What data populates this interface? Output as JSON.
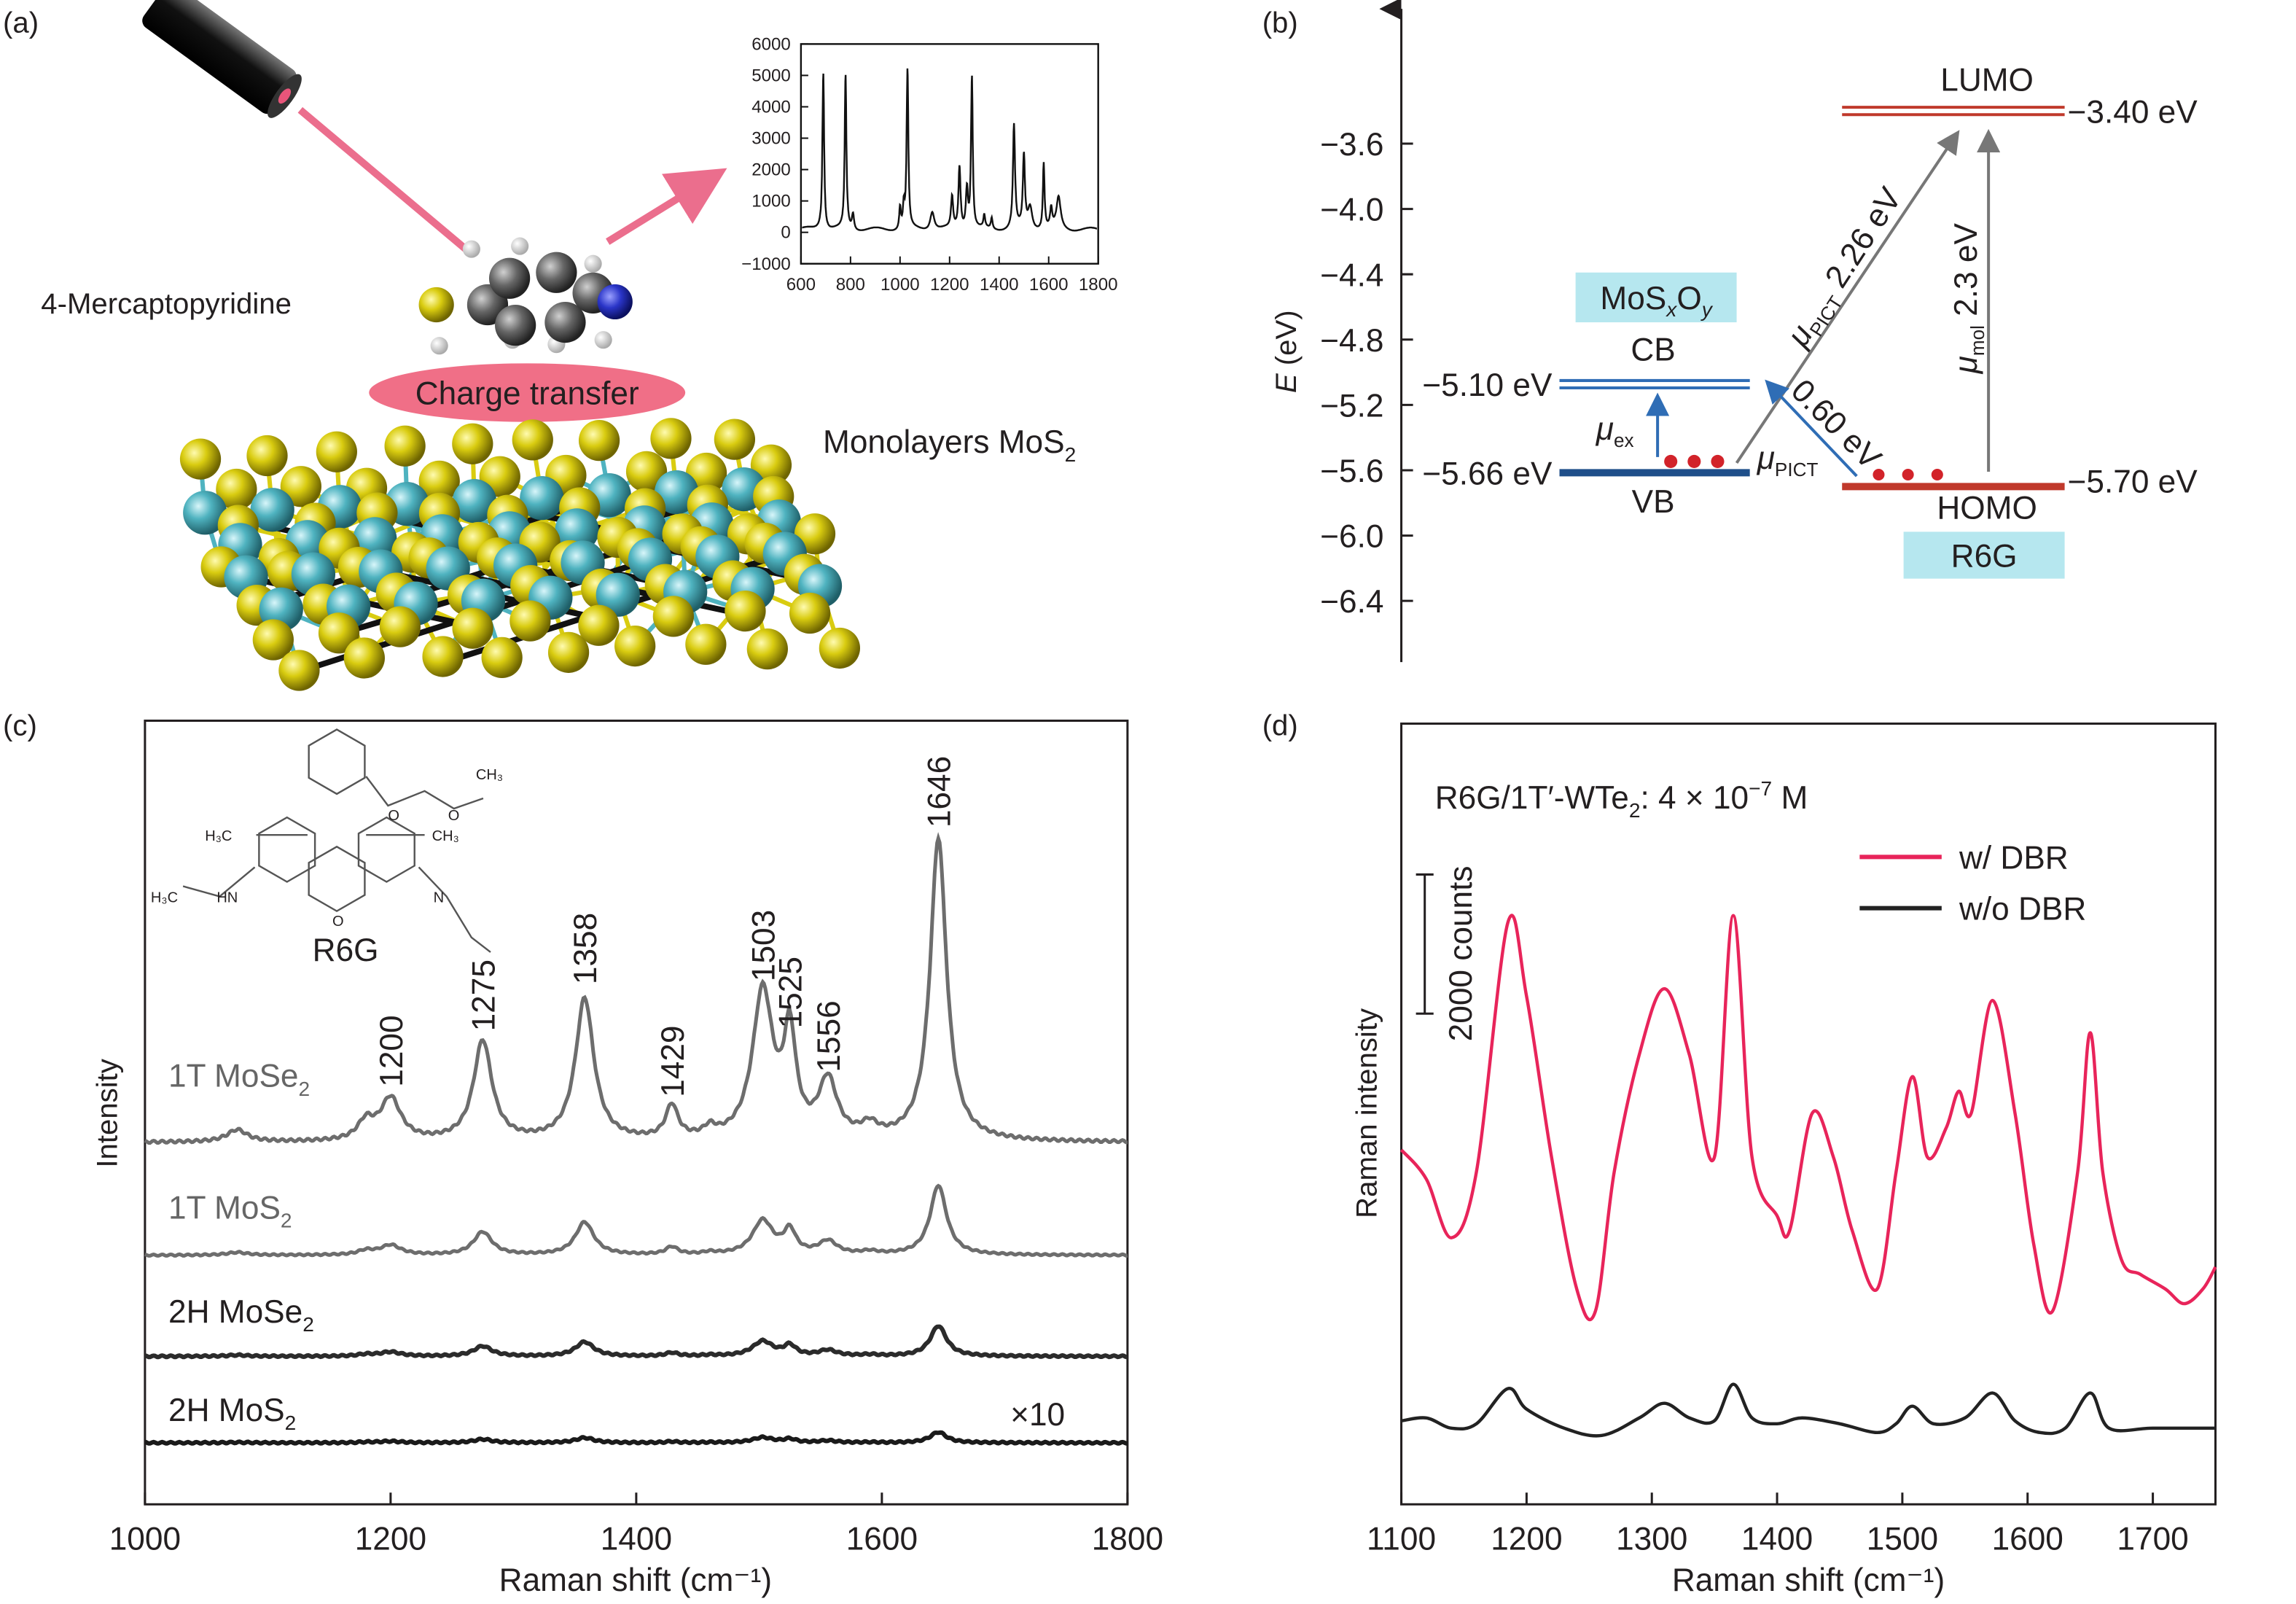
{
  "panels": {
    "a": {
      "label": "(a)",
      "molecule_label": "4-Mercaptopyridine",
      "charge_transfer_label": "Charge transfer",
      "substrate_label": "Monolayers MoS",
      "substrate_sub": "2",
      "colors": {
        "beam": "#e8557a",
        "ellipse": "#ee5f7a",
        "sulfur": "#d9cc10",
        "metal": "#4fb3c0",
        "nitrogen": "#2a35c8",
        "carbon": "#555555"
      }
    },
    "b": {
      "label": "(b)",
      "ylabel": "E (eV)",
      "yticks": [
        "−3.6",
        "−4.0",
        "−4.4",
        "−4.8",
        "−5.2",
        "−5.6",
        "−6.0",
        "−6.4"
      ],
      "ytick_values": [
        -3.6,
        -4.0,
        -4.4,
        -4.8,
        -5.2,
        -5.6,
        -6.0,
        -6.4
      ],
      "levels": {
        "cb": {
          "name": "CB",
          "value": -5.1,
          "text": "−5.10 eV"
        },
        "vb": {
          "name": "VB",
          "value": -5.66,
          "text": "−5.66 eV"
        },
        "lumo": {
          "name": "LUMO",
          "value": -3.4,
          "text": "−3.40 eV"
        },
        "homo": {
          "name": "HOMO",
          "value": -5.7,
          "text": "−5.70 eV"
        }
      },
      "substrate_box": {
        "main": "MoS",
        "sub_x": "x",
        "mid": "O",
        "sub_y": "y"
      },
      "molecule_box": "R6G",
      "transitions": {
        "mu_ex": {
          "mu": "μ",
          "sub": "ex"
        },
        "mu_pict_vb": {
          "mu": "μ",
          "sub": "PICT"
        },
        "mu_pict_226": {
          "mu": "μ",
          "sub": "PICT",
          "energy": " 2.26 eV"
        },
        "homo_cb": {
          "energy": "0.60 eV"
        },
        "mu_mol": {
          "mu": "μ",
          "sub": "mol",
          "energy": " 2.3 eV"
        }
      },
      "colors": {
        "substrate": "#2f6db5",
        "molecule": "#c0392b",
        "box": "#b6e7ef",
        "arrow": "#2f6db5",
        "arrow_gray": "#777777"
      }
    },
    "c": {
      "label": "(c)",
      "ylabel": "Intensity",
      "molecule_label": "R6G",
      "structure_atoms": [
        "H₃C",
        "CH₃",
        "HN",
        "N",
        "H₃C",
        "O",
        "O",
        "O",
        "CH₃"
      ],
      "multiplier": "×10"
    },
    "d": {
      "label": "(d)",
      "ylabel": "Raman intensity",
      "title": "R6G/1T′-WTe",
      "title_sub": "2",
      "title_rest": ": 4 × 10",
      "title_exp": "−7",
      "title_unit": " M",
      "scalebar_label": "2000 counts"
    }
  },
  "chart_data": [
    {
      "id": "inset-a",
      "type": "line",
      "xlim": [
        600,
        1800
      ],
      "ylim": [
        -1000,
        6000
      ],
      "xticks": [
        600,
        800,
        1000,
        1200,
        1400,
        1600,
        1800
      ],
      "yticks": [
        -1000,
        0,
        1000,
        2000,
        3000,
        4000,
        5000,
        6000
      ],
      "peaks": [
        [
          690,
          5100,
          4
        ],
        [
          780,
          4950,
          4
        ],
        [
          810,
          500,
          5
        ],
        [
          1000,
          700,
          4
        ],
        [
          1015,
          700,
          4
        ],
        [
          1030,
          5100,
          4
        ],
        [
          1130,
          600,
          10
        ],
        [
          1210,
          1000,
          5
        ],
        [
          1240,
          2000,
          5
        ],
        [
          1270,
          1300,
          5
        ],
        [
          1290,
          4900,
          4
        ],
        [
          1340,
          400,
          4
        ],
        [
          1370,
          350,
          4
        ],
        [
          1460,
          3300,
          5
        ],
        [
          1500,
          2300,
          5
        ],
        [
          1525,
          700,
          10
        ],
        [
          1580,
          2100,
          4
        ],
        [
          1610,
          600,
          5
        ],
        [
          1640,
          1000,
          10
        ]
      ]
    },
    {
      "id": "panel-c",
      "type": "line",
      "xlabel": "Raman shift (cm⁻¹)",
      "ylabel": "Intensity",
      "xlim": [
        1000,
        1800
      ],
      "xticks": [
        1000,
        1200,
        1400,
        1600,
        1800
      ],
      "peaks": [
        [
          1075,
          4,
          10
        ],
        [
          1180,
          6,
          8
        ],
        [
          1200,
          14,
          10
        ],
        [
          1275,
          33,
          9
        ],
        [
          1358,
          47,
          9
        ],
        [
          1429,
          11,
          6
        ],
        [
          1460,
          3,
          6
        ],
        [
          1503,
          49,
          10
        ],
        [
          1525,
          33,
          6
        ],
        [
          1556,
          19,
          9
        ],
        [
          1590,
          4,
          8
        ],
        [
          1646,
          100,
          8
        ]
      ],
      "peak_labels": [
        "1200",
        "1275",
        "1358",
        "1429",
        "1503",
        "1525",
        "1556",
        "1646"
      ],
      "series": [
        {
          "name": "1T MoSe",
          "sub": "2",
          "scale": 1.0,
          "color": "#6d6d6d"
        },
        {
          "name": "1T MoS",
          "sub": "2",
          "scale": 0.23,
          "color": "#6d6d6d"
        },
        {
          "name": "2H MoSe",
          "sub": "2",
          "scale": 0.1,
          "color": "#2b2b2b"
        },
        {
          "name": "2H MoS",
          "sub": "2",
          "scale": 0.035,
          "color": "#1a1a1a"
        }
      ]
    },
    {
      "id": "panel-d",
      "type": "line",
      "xlabel": "Raman shift (cm⁻¹)",
      "ylabel": "Raman intensity",
      "xlim": [
        1100,
        1750
      ],
      "xticks": [
        1100,
        1200,
        1300,
        1400,
        1500,
        1600,
        1700
      ],
      "scalebar_counts": 2000,
      "legend_position": "top-right",
      "series": [
        {
          "name": "w/ DBR",
          "color": "#e8245a",
          "x": [
            1100,
            1120,
            1140,
            1160,
            1185,
            1200,
            1220,
            1240,
            1255,
            1270,
            1290,
            1310,
            1330,
            1350,
            1365,
            1380,
            1400,
            1410,
            1428,
            1445,
            1460,
            1480,
            1495,
            1508,
            1520,
            1535,
            1545,
            1555,
            1572,
            1590,
            1605,
            1620,
            1640,
            1650,
            1660,
            1675,
            1690,
            1710,
            1725,
            1740,
            1750
          ],
          "y": [
            5094,
            4673,
            3831,
            4778,
            8357,
            7304,
            4989,
            3094,
            2779,
            4778,
            6462,
            7410,
            6462,
            4989,
            8462,
            4989,
            4147,
            3936,
            5620,
            4989,
            3936,
            3094,
            4778,
            6147,
            4989,
            5410,
            5936,
            5620,
            7241,
            5620,
            3726,
            2779,
            4778,
            6778,
            4778,
            3515,
            3305,
            3094,
            2884,
            3094,
            3410
          ]
        },
        {
          "name": "w/o DBR",
          "color": "#222222",
          "x": [
            1100,
            1120,
            1140,
            1160,
            1185,
            1200,
            1230,
            1260,
            1290,
            1310,
            1330,
            1350,
            1365,
            1380,
            1400,
            1420,
            1450,
            1480,
            1495,
            1508,
            1525,
            1550,
            1572,
            1590,
            1610,
            1630,
            1650,
            1665,
            1700,
            1750
          ],
          "y": [
            1200,
            1242,
            1095,
            1158,
            1663,
            1368,
            1095,
            989,
            1242,
            1453,
            1242,
            1200,
            1726,
            1242,
            1158,
            1242,
            1158,
            1031,
            1158,
            1410,
            1158,
            1242,
            1600,
            1200,
            1031,
            1095,
            1600,
            1095,
            1095,
            1095
          ]
        }
      ]
    }
  ]
}
